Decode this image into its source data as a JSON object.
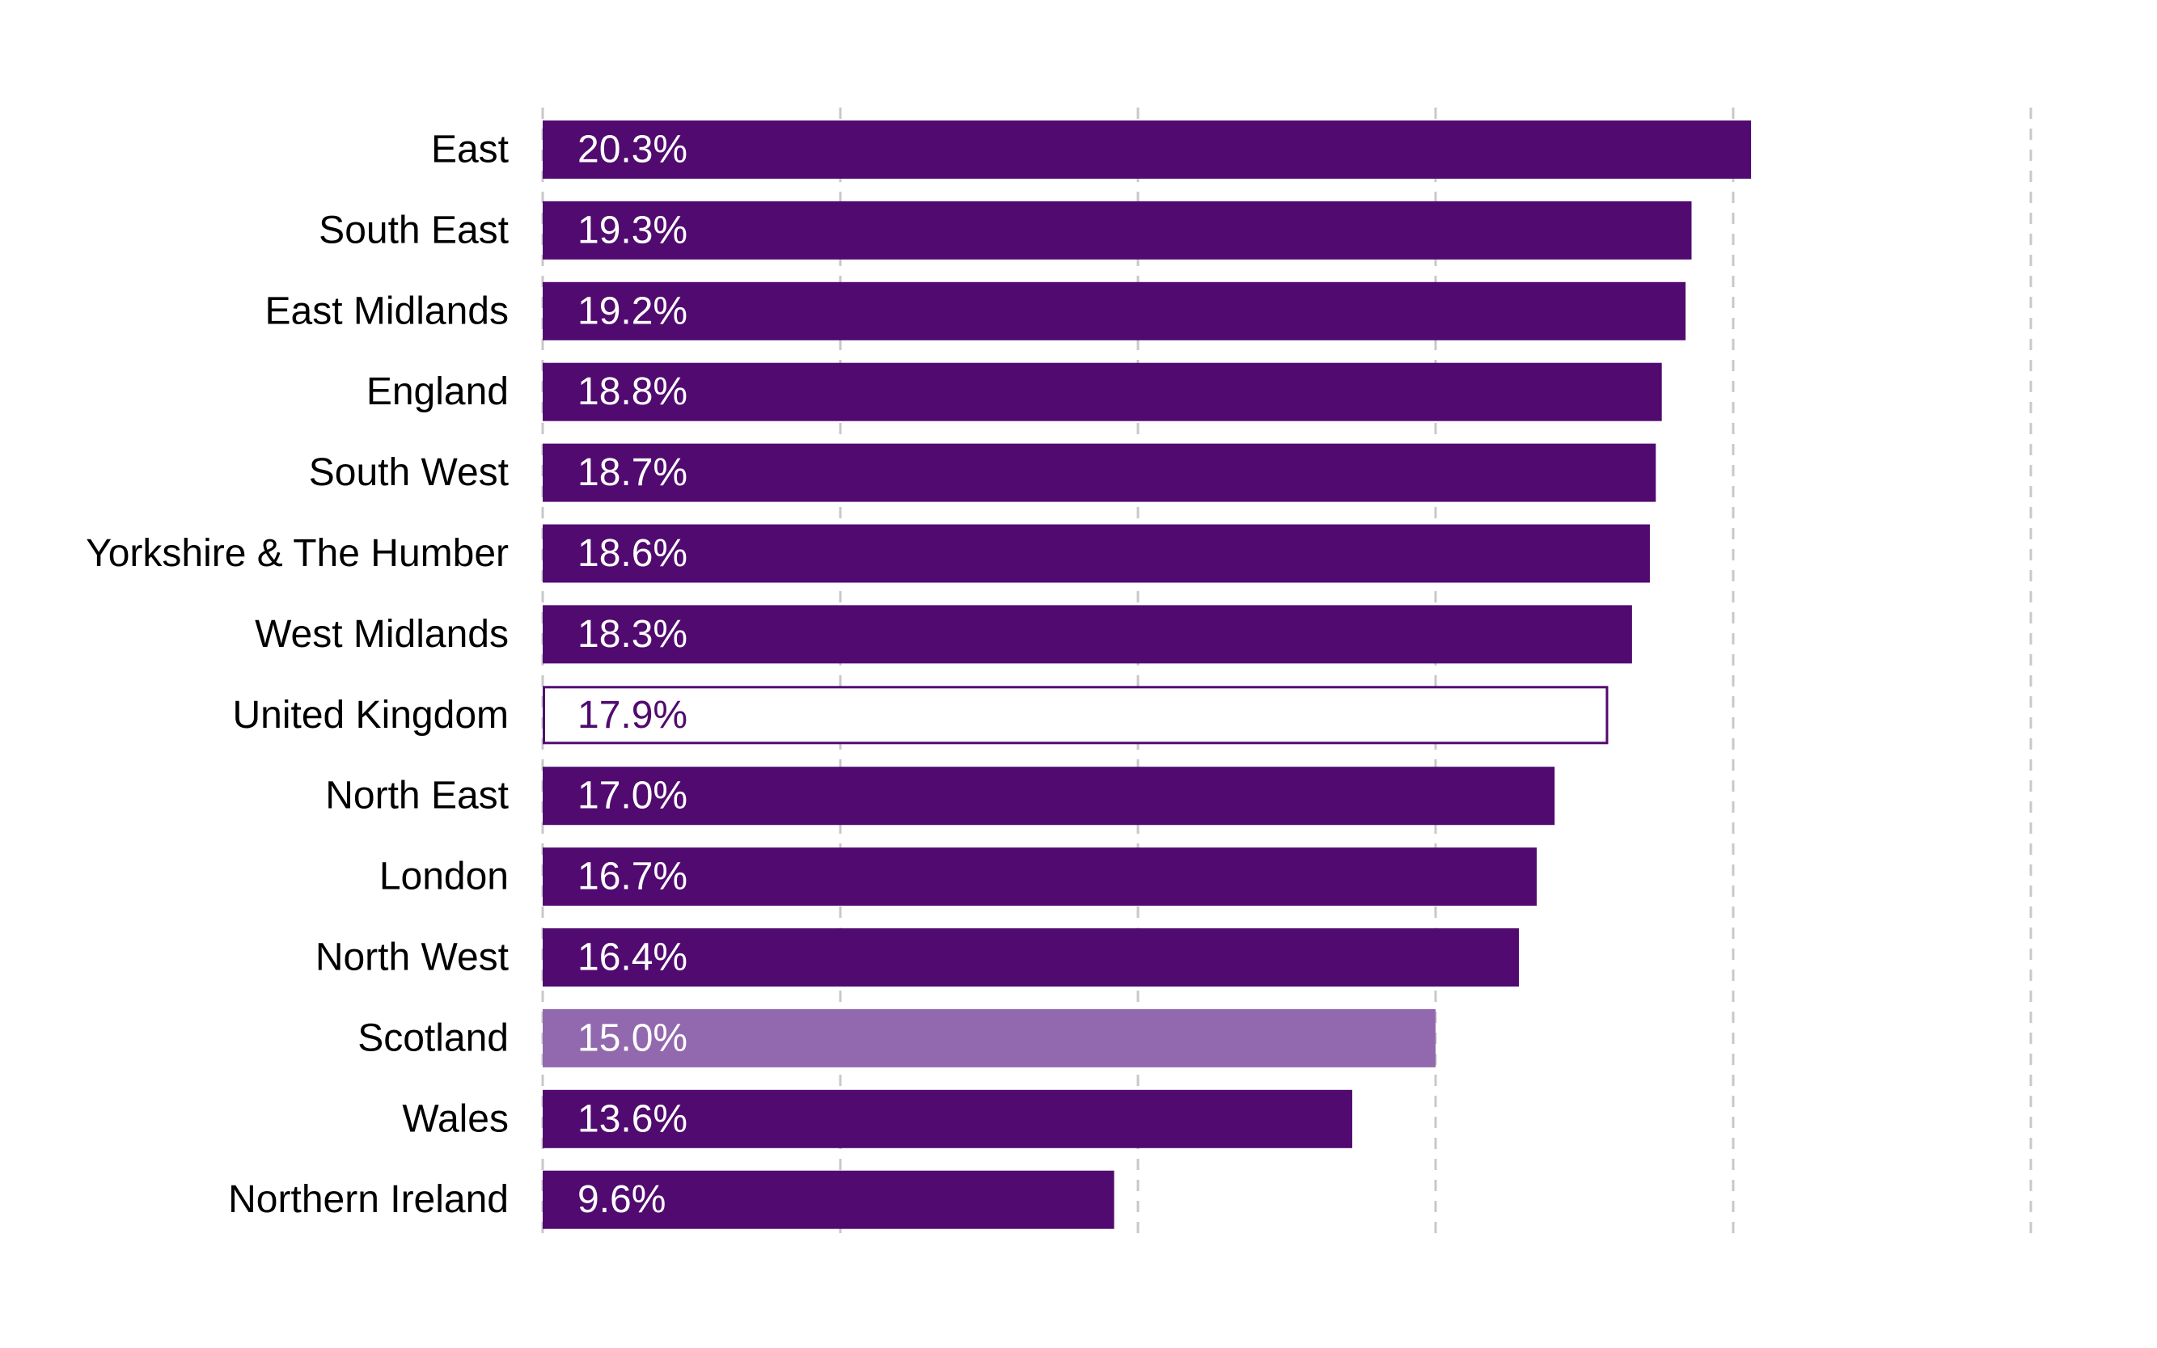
{
  "chart_data": {
    "type": "bar",
    "orientation": "horizontal",
    "title": "",
    "xlabel": "",
    "ylabel": "",
    "xlim": [
      0,
      25
    ],
    "gridlines": [
      0,
      5,
      10,
      15,
      20,
      25
    ],
    "grid": "vertical dashed",
    "categories": [
      "East",
      "South East",
      "East Midlands",
      "England",
      "South West",
      "Yorkshire & The Humber",
      "West Midlands",
      "United Kingdom",
      "North East",
      "London",
      "North West",
      "Scotland",
      "Wales",
      "Northern Ireland"
    ],
    "values": [
      20.3,
      19.3,
      19.2,
      18.8,
      18.7,
      18.6,
      18.3,
      17.9,
      17.0,
      16.7,
      16.4,
      15.0,
      13.6,
      9.6
    ],
    "data_labels": [
      "20.3%",
      "19.3%",
      "19.2%",
      "18.8%",
      "18.7%",
      "18.6%",
      "18.3%",
      "17.9%",
      "17.0%",
      "16.7%",
      "16.4%",
      "15.0%",
      "13.6%",
      "9.6%"
    ],
    "styles": [
      "default",
      "default",
      "default",
      "default",
      "default",
      "default",
      "default",
      "outline",
      "default",
      "default",
      "default",
      "highlight",
      "default",
      "default"
    ]
  },
  "colors": {
    "default": "#510a70",
    "highlight": "#9269ae",
    "outline_stroke": "#510a70",
    "outline_fill": "#ffffff",
    "grid": "#c8c8c8"
  }
}
